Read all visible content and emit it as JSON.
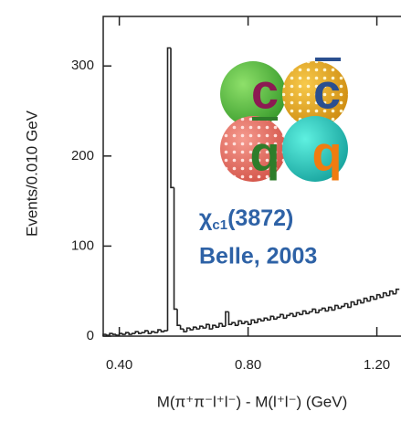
{
  "chart_data": {
    "type": "histogram",
    "x_label": "M(π⁺π⁻l⁺l⁻) - M(l⁺l⁻) (GeV)",
    "y_label": "Events/0.010 GeV",
    "bins": [
      0.35,
      0.36,
      0.37,
      0.38,
      0.39,
      0.4,
      0.41,
      0.42,
      0.43,
      0.44,
      0.45,
      0.46,
      0.47,
      0.48,
      0.49,
      0.5,
      0.51,
      0.52,
      0.53,
      0.54,
      0.55,
      0.56,
      0.57,
      0.58,
      0.59,
      0.6,
      0.61,
      0.62,
      0.63,
      0.64,
      0.65,
      0.66,
      0.67,
      0.68,
      0.69,
      0.7,
      0.71,
      0.72,
      0.73,
      0.74,
      0.75,
      0.76,
      0.77,
      0.78,
      0.79,
      0.8,
      0.81,
      0.82,
      0.83,
      0.84,
      0.85,
      0.86,
      0.87,
      0.88,
      0.89,
      0.9,
      0.91,
      0.92,
      0.93,
      0.94,
      0.95,
      0.96,
      0.97,
      0.98,
      0.99,
      1.0,
      1.01,
      1.02,
      1.03,
      1.04,
      1.05,
      1.06,
      1.07,
      1.08,
      1.09,
      1.1,
      1.11,
      1.12,
      1.13,
      1.14,
      1.15,
      1.16,
      1.17,
      1.18,
      1.19,
      1.2,
      1.21,
      1.22,
      1.23,
      1.24,
      1.25,
      1.26,
      1.27
    ],
    "counts": [
      2,
      1,
      3,
      2,
      1,
      3,
      2,
      4,
      2,
      3,
      5,
      3,
      4,
      6,
      3,
      5,
      4,
      7,
      5,
      6,
      320,
      165,
      30,
      12,
      8,
      5,
      9,
      7,
      10,
      8,
      11,
      9,
      13,
      8,
      12,
      10,
      14,
      11,
      27,
      13,
      15,
      12,
      17,
      14,
      16,
      13,
      18,
      15,
      19,
      17,
      20,
      18,
      22,
      19,
      21,
      24,
      20,
      23,
      25,
      22,
      26,
      24,
      28,
      25,
      27,
      30,
      26,
      29,
      31,
      28,
      32,
      29,
      34,
      31,
      33,
      36,
      32,
      38,
      35,
      40,
      37,
      42,
      39,
      44,
      41,
      46,
      43,
      48,
      45,
      50,
      47,
      52
    ],
    "color": "#222222",
    "xlim": [
      0.35,
      1.275
    ],
    "ylim": [
      0,
      355
    ],
    "xticks": [
      {
        "value": 0.4,
        "label": "0.40"
      },
      {
        "value": 0.8,
        "label": "0.80"
      },
      {
        "value": 1.2,
        "label": "1.20"
      }
    ],
    "yticks": [
      0,
      100,
      200,
      300
    ],
    "illustration": {
      "quarks": [
        "c",
        "c",
        "q",
        "q"
      ],
      "state": "χ",
      "state_sub": "c1",
      "state_mass": "(3872)",
      "note": "Belle, 2003"
    }
  }
}
